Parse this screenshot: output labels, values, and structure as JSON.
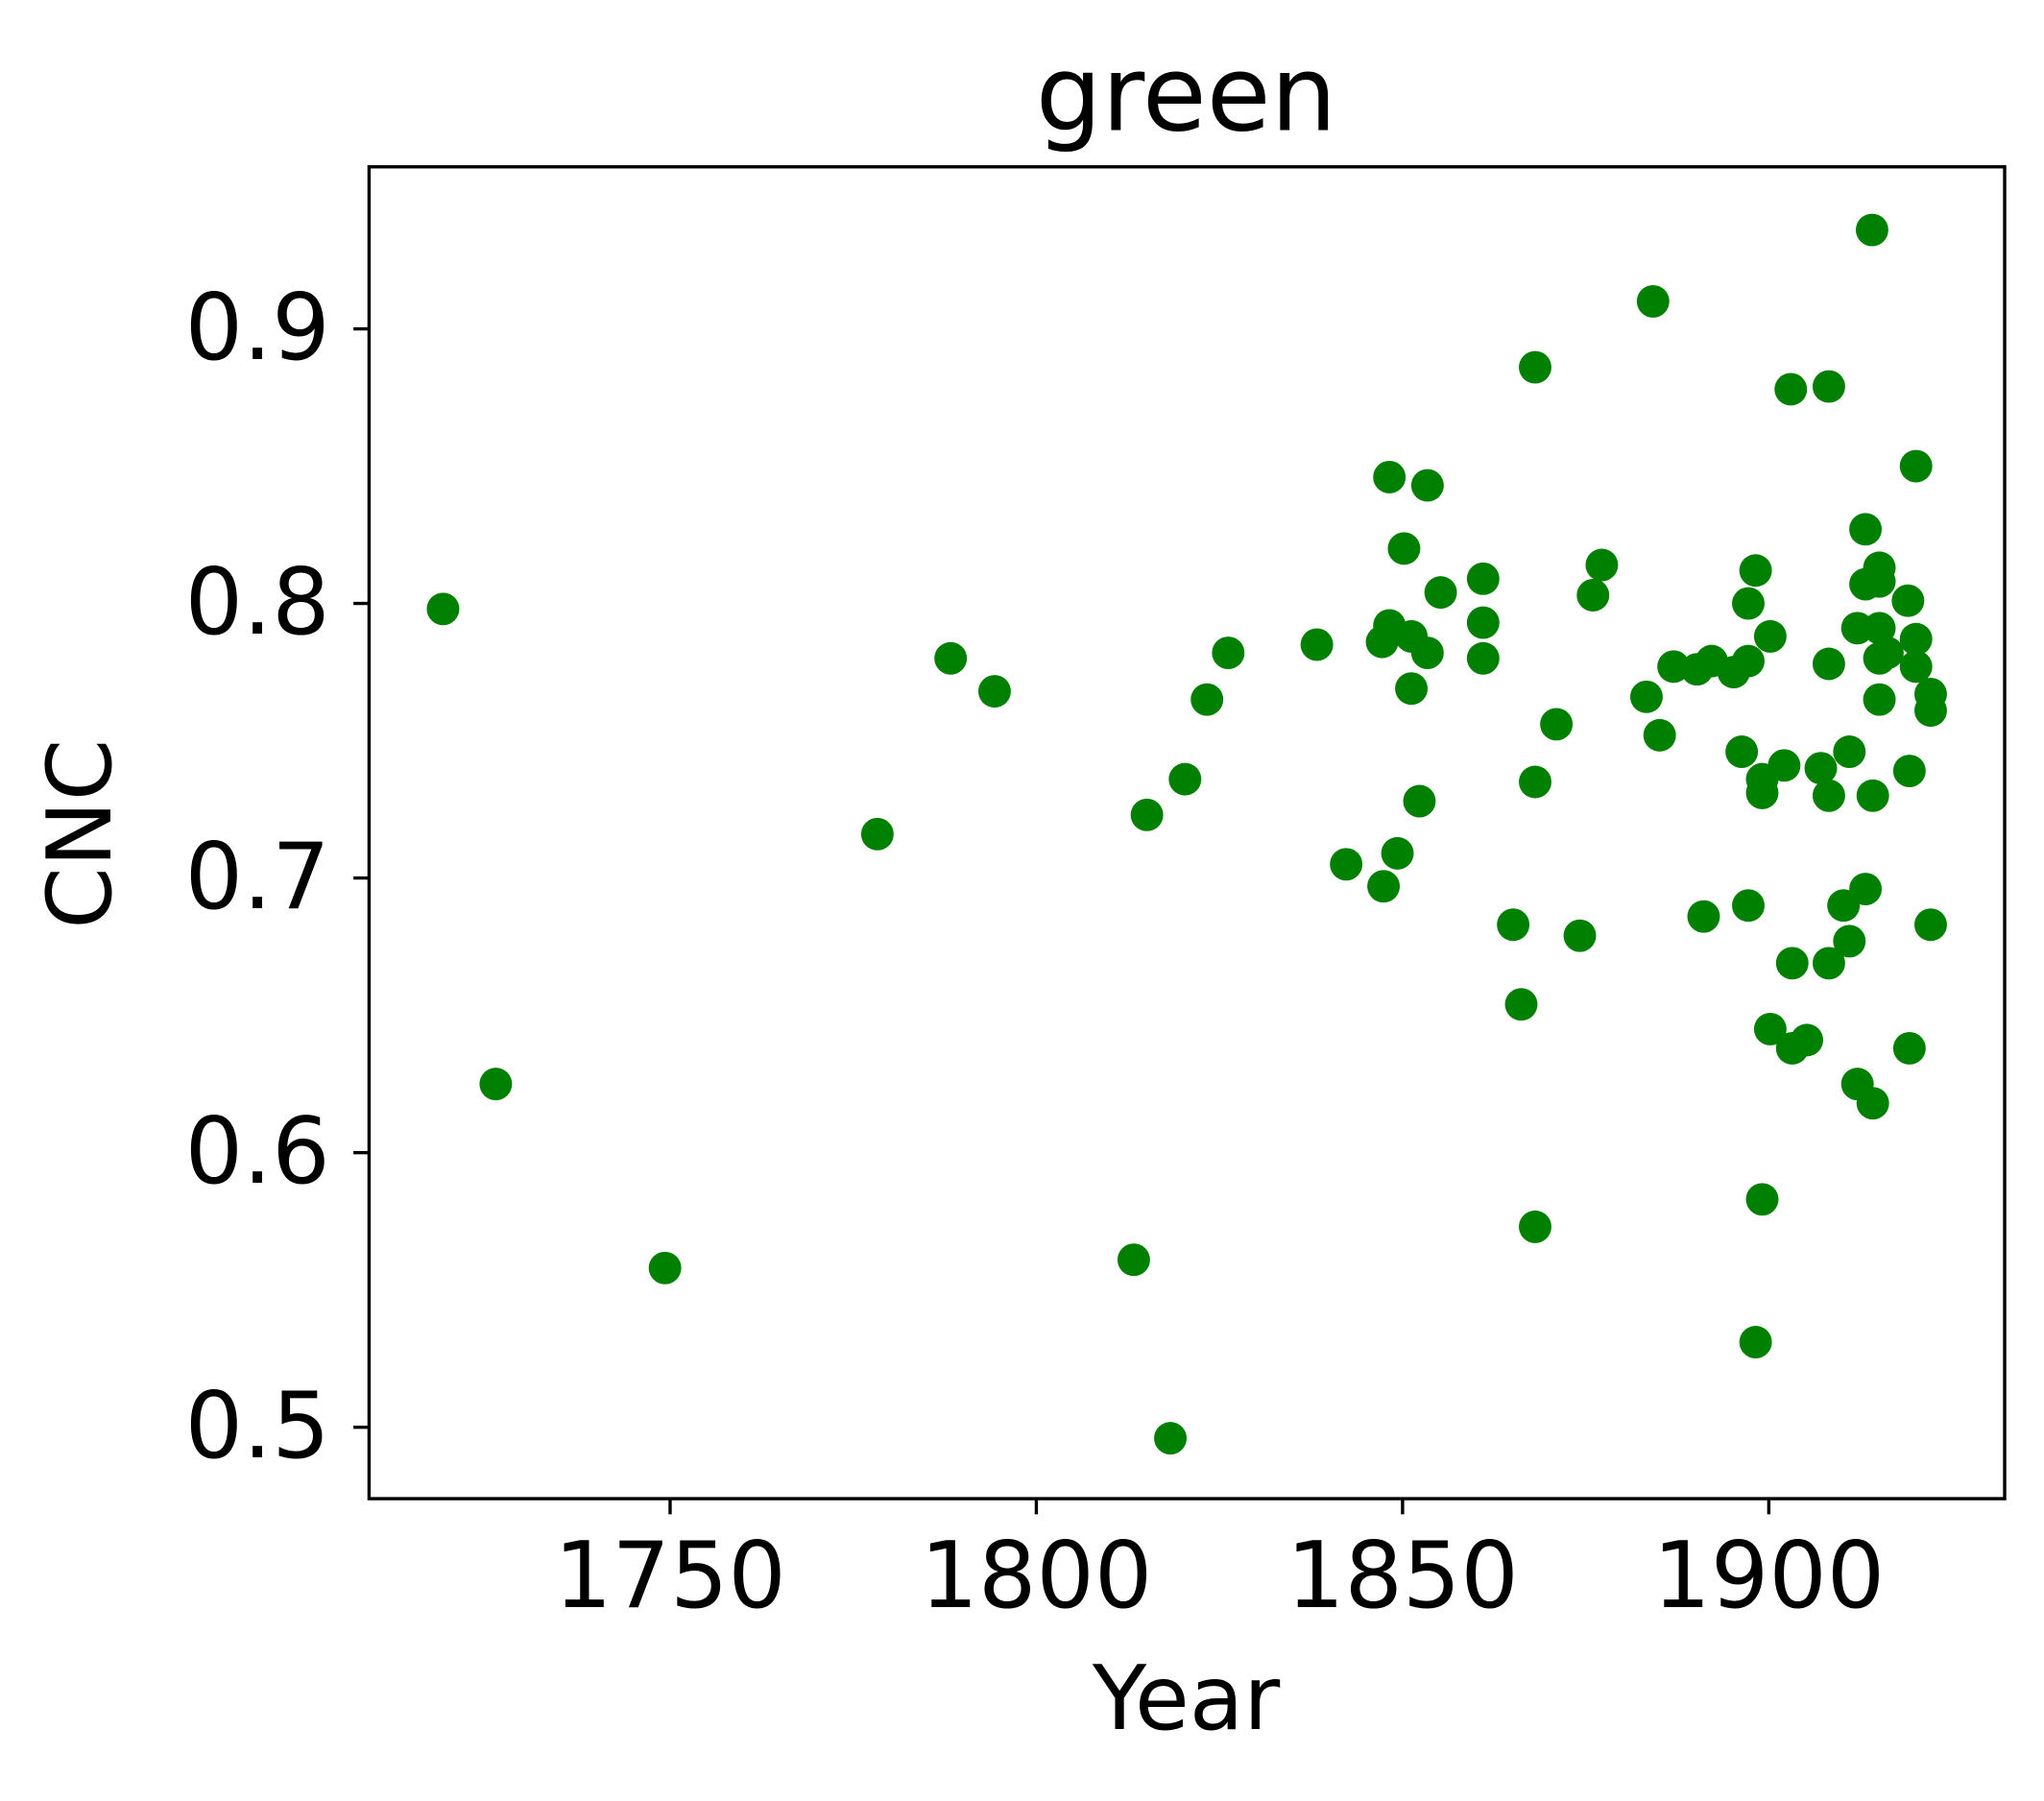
{
  "chart_data": {
    "type": "scatter",
    "title": "green",
    "xlabel": "Year",
    "ylabel": "CNC",
    "color": "#008000",
    "xlim": [
      1708.9,
      1932.2
    ],
    "ylim": [
      0.474,
      0.959
    ],
    "xticks": [
      1750,
      1800,
      1850,
      1900
    ],
    "yticks": [
      0.5,
      0.6,
      0.7,
      0.8,
      0.9
    ],
    "grid": false,
    "x": [
      1719.0,
      1726.2,
      1749.3,
      1778.3,
      1788.3,
      1794.3,
      1813.3,
      1815.1,
      1818.3,
      1820.3,
      1823.3,
      1826.2,
      1838.3,
      1842.3,
      1847.2,
      1847.4,
      1848.2,
      1848.2,
      1849.3,
      1850.2,
      1851.2,
      1851.2,
      1852.3,
      1853.4,
      1853.4,
      1855.2,
      1861.0,
      1861.0,
      1861.0,
      1865.1,
      1866.2,
      1868.1,
      1868.1,
      1868.1,
      1871.0,
      1874.2,
      1876.0,
      1877.2,
      1883.3,
      1884.2,
      1885.1,
      1887.0,
      1890.2,
      1891.1,
      1892.2,
      1895.2,
      1896.3,
      1897.2,
      1897.2,
      1897.2,
      1898.2,
      1898.2,
      1899.1,
      1899.1,
      1899.1,
      1900.2,
      1900.2,
      1902.1,
      1903.0,
      1903.2,
      1903.2,
      1905.2,
      1907.1,
      1908.2,
      1908.2,
      1908.2,
      1908.2,
      1910.2,
      1911.0,
      1911.0,
      1912.1,
      1912.1,
      1913.2,
      1913.2,
      1913.2,
      1914.1,
      1914.2,
      1914.2,
      1915.1,
      1915.1,
      1915.1,
      1915.1,
      1915.1,
      1916.2,
      1919.0,
      1919.2,
      1919.2,
      1920.1,
      1920.1,
      1920.1,
      1922.1,
      1922.1,
      1922.1
    ],
    "values": [
      0.798,
      0.625,
      0.558,
      0.716,
      0.78,
      0.768,
      0.561,
      0.723,
      0.496,
      0.736,
      0.765,
      0.782,
      0.785,
      0.705,
      0.786,
      0.697,
      0.846,
      0.792,
      0.709,
      0.82,
      0.788,
      0.769,
      0.728,
      0.843,
      0.782,
      0.804,
      0.809,
      0.793,
      0.78,
      0.683,
      0.654,
      0.886,
      0.735,
      0.573,
      0.756,
      0.679,
      0.803,
      0.814,
      0.766,
      0.91,
      0.752,
      0.777,
      0.776,
      0.686,
      0.779,
      0.775,
      0.746,
      0.8,
      0.69,
      0.779,
      0.812,
      0.531,
      0.736,
      0.731,
      0.583,
      0.788,
      0.645,
      0.741,
      0.878,
      0.669,
      0.638,
      0.641,
      0.74,
      0.879,
      0.778,
      0.73,
      0.669,
      0.69,
      0.746,
      0.677,
      0.791,
      0.625,
      0.827,
      0.807,
      0.696,
      0.936,
      0.73,
      0.618,
      0.813,
      0.808,
      0.791,
      0.78,
      0.765,
      0.782,
      0.801,
      0.739,
      0.638,
      0.85,
      0.787,
      0.777,
      0.767,
      0.761,
      0.683
    ]
  }
}
